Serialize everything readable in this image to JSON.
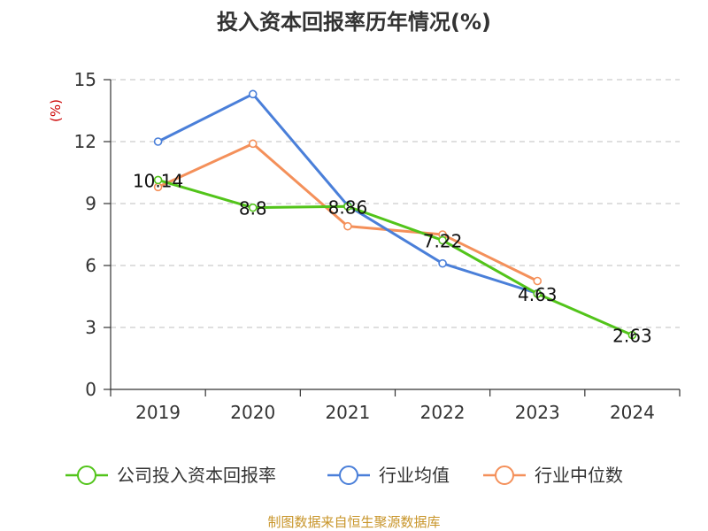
{
  "chart_data": {
    "type": "line",
    "title": "投入资本回报率历年情况(%)",
    "ylabel": "(%)",
    "xlabel": "",
    "categories": [
      "2019",
      "2020",
      "2021",
      "2022",
      "2023",
      "2024"
    ],
    "ylim": [
      0,
      15
    ],
    "yticks": [
      "0",
      "3",
      "6",
      "9",
      "12",
      "15"
    ],
    "grid": true,
    "legend_position": "bottom",
    "series": [
      {
        "name": "公司投入资本回报率",
        "color": "#52c41a",
        "values": [
          10.14,
          8.8,
          8.86,
          7.22,
          4.63,
          2.63
        ],
        "labels": [
          "10.14",
          "8.8",
          "8.86",
          "7.22",
          "4.63",
          "2.63"
        ]
      },
      {
        "name": "行业均值",
        "color": "#4a7fd9",
        "values": [
          12.0,
          14.3,
          8.9,
          6.1,
          4.65,
          null
        ]
      },
      {
        "name": "行业中位数",
        "color": "#f4905a",
        "values": [
          9.8,
          11.9,
          7.9,
          7.5,
          5.25,
          null
        ]
      }
    ]
  },
  "source_text": "制图数据来自恒生聚源数据库"
}
